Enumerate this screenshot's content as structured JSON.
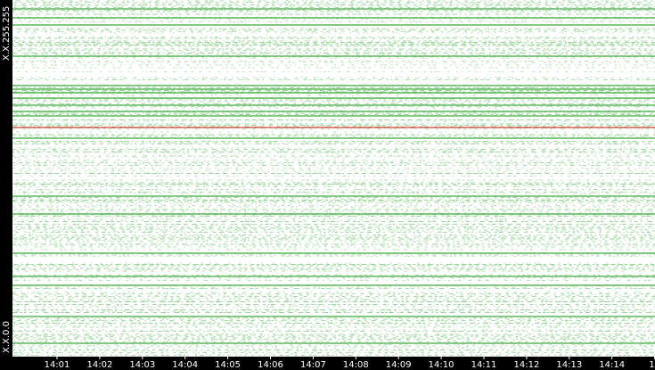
{
  "y_axis": {
    "top_label": "X.X.255.255",
    "bottom_label": "X.X.0.0"
  },
  "x_axis": {
    "labels": [
      "14:01",
      "14:02",
      "14:03",
      "14:04",
      "14:05",
      "14:06",
      "14:07",
      "14:08",
      "14:09",
      "14:10",
      "14:11",
      "14:12",
      "14:13",
      "14:14",
      "14"
    ]
  }
}
